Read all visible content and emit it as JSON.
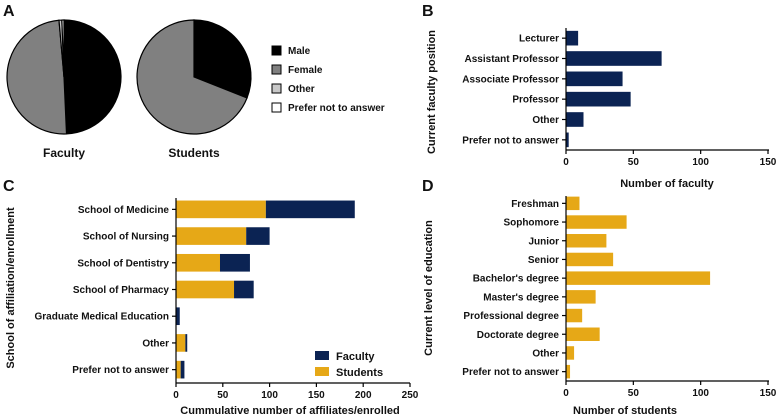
{
  "panels": {
    "A": "A",
    "B": "B",
    "C": "C",
    "D": "D"
  },
  "colors": {
    "navy": "#0b2353",
    "gold": "#e6a817",
    "male": "#000000",
    "female": "#808080",
    "other": "#c8c8c8",
    "prefer_not": "#ffffff"
  },
  "chart_data": [
    {
      "panel": "A",
      "type": "pie",
      "pies": [
        {
          "label": "Faculty",
          "slices": [
            {
              "name": "Male",
              "value": 49.3
            },
            {
              "name": "Female",
              "value": 49.3
            },
            {
              "name": "Other",
              "value": 0.8
            },
            {
              "name": "Prefer not to answer",
              "value": 0.6
            }
          ]
        },
        {
          "label": "Students",
          "slices": [
            {
              "name": "Male",
              "value": 31
            },
            {
              "name": "Female",
              "value": 69
            },
            {
              "name": "Other",
              "value": 0
            },
            {
              "name": "Prefer not to answer",
              "value": 0
            }
          ]
        }
      ],
      "legend": [
        "Male",
        "Female",
        "Other",
        "Prefer not to answer"
      ]
    },
    {
      "panel": "B",
      "type": "bar",
      "orientation": "horizontal",
      "categories": [
        "Lecturer",
        "Assistant Professor",
        "Associate Professor",
        "Professor",
        "Other",
        "Prefer not to answer"
      ],
      "values": [
        9,
        71,
        42,
        48,
        13,
        2
      ],
      "xlabel": "Number of faculty",
      "ylabel": "Current faculty position",
      "xlim": [
        0,
        150
      ],
      "xticks": [
        "0",
        "50",
        "100",
        "150"
      ]
    },
    {
      "panel": "C",
      "type": "bar",
      "orientation": "horizontal",
      "stacked": true,
      "categories": [
        "School of Medicine",
        "School of Nursing",
        "School of Dentistry",
        "School of Pharmacy",
        "Graduate Medical Education",
        "Other",
        "Prefer not to answer"
      ],
      "series": [
        {
          "name": "Students",
          "values": [
            96,
            75,
            47,
            62,
            0,
            10,
            5
          ]
        },
        {
          "name": "Faculty",
          "values": [
            95,
            25,
            32,
            21,
            4,
            2,
            4
          ]
        }
      ],
      "legend": [
        "Faculty",
        "Students"
      ],
      "xlabel": "Cummulative number of affiliates/enrolled",
      "ylabel": "School of affiliation/enrollment",
      "xlim": [
        0,
        250
      ],
      "xticks": [
        "0",
        "50",
        "100",
        "150",
        "200",
        "250"
      ]
    },
    {
      "panel": "D",
      "type": "bar",
      "orientation": "horizontal",
      "categories": [
        "Freshman",
        "Sophomore",
        "Junior",
        "Senior",
        "Bachelor's degree",
        "Master's degree",
        "Professional degree",
        "Doctorate degree",
        "Other",
        "Prefer not to answer"
      ],
      "values": [
        10,
        45,
        30,
        35,
        107,
        22,
        12,
        25,
        6,
        3
      ],
      "xlabel": "Number of students",
      "ylabel": "Current level of education",
      "xlim": [
        0,
        150
      ],
      "xticks": [
        "0",
        "50",
        "100",
        "150"
      ]
    }
  ]
}
